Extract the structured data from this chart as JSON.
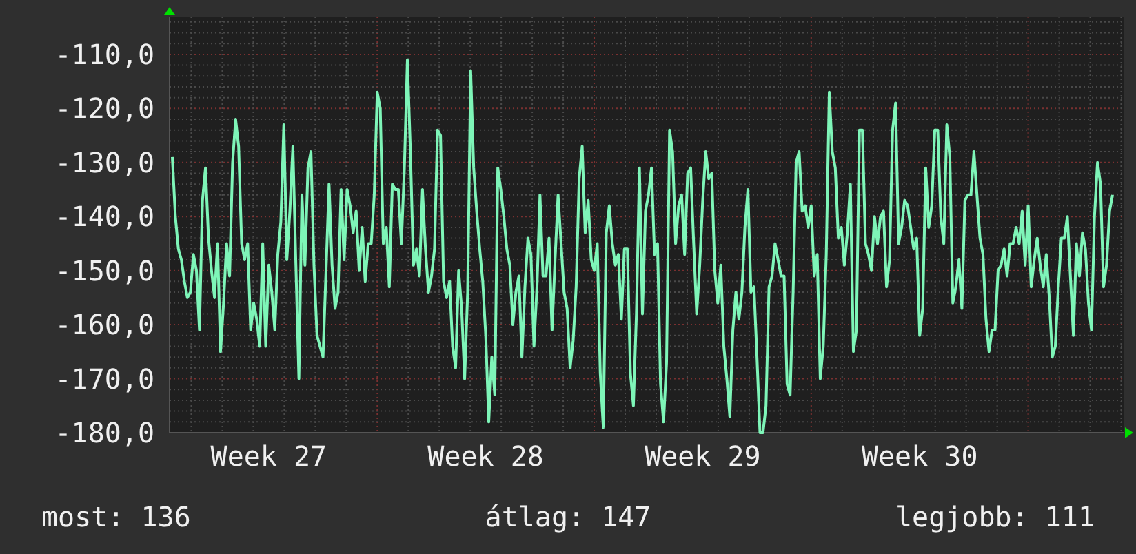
{
  "chart_data": {
    "type": "line",
    "ylim": [
      -180,
      -103
    ],
    "categories": [
      null,
      null,
      null,
      null,
      null,
      null,
      null,
      null,
      null,
      null,
      null,
      null,
      null,
      null,
      null,
      null,
      null,
      null,
      null,
      null,
      null,
      null,
      null,
      null,
      null,
      null,
      null,
      null,
      null,
      null,
      null,
      null,
      "Week 27",
      null,
      null,
      null,
      null,
      null,
      null,
      null,
      null,
      null,
      null,
      null,
      null,
      null,
      null,
      null,
      null,
      null,
      null,
      null,
      null,
      null,
      null,
      null,
      null,
      null,
      null,
      null,
      null,
      null,
      null,
      null,
      null,
      null,
      null,
      null,
      null,
      null,
      null,
      null,
      null,
      null,
      null,
      null,
      null,
      null,
      null,
      null,
      null,
      null,
      null,
      null,
      null,
      null,
      null,
      null,
      null,
      null,
      null,
      null,
      null,
      null,
      null,
      null,
      null,
      null,
      null,
      null,
      null,
      null,
      null,
      null,
      "Week 28",
      null,
      null,
      null,
      null,
      null,
      null,
      null,
      null,
      null,
      null,
      null,
      null,
      null,
      null,
      null,
      null,
      null,
      null,
      null,
      null,
      null,
      null,
      null,
      null,
      null,
      null,
      null,
      null,
      null,
      null,
      null,
      null,
      null,
      null,
      null,
      null,
      null,
      null,
      null,
      null,
      null,
      null,
      null,
      null,
      null,
      null,
      null,
      null,
      null,
      null,
      null,
      null,
      null,
      null,
      null,
      null,
      null,
      null,
      null,
      null,
      null,
      null,
      null,
      null,
      null,
      null,
      null,
      null,
      null,
      null,
      null,
      "Week 29",
      null,
      null,
      null,
      null,
      null,
      null,
      null,
      null,
      null,
      null,
      null,
      null,
      null,
      null,
      null,
      null,
      null,
      null,
      null,
      null,
      null,
      null,
      null,
      null,
      null,
      null,
      null,
      null,
      null,
      null,
      null,
      null,
      null,
      null,
      null,
      null,
      null,
      null,
      null,
      null,
      null,
      null,
      null,
      null,
      null,
      null,
      null,
      null,
      null,
      null,
      null,
      null,
      null,
      null,
      null,
      null,
      null,
      null,
      null,
      null,
      null,
      null,
      null,
      null,
      null,
      null,
      null,
      null,
      null,
      null,
      null,
      "Week 30",
      null,
      null,
      null,
      null,
      null,
      null,
      null,
      null,
      null,
      null,
      null,
      null,
      null,
      null,
      null,
      null,
      null,
      null,
      null,
      null,
      null,
      null,
      null,
      null,
      null,
      null,
      null,
      null,
      null,
      null,
      null,
      null,
      null,
      null,
      null,
      null,
      null,
      null,
      null,
      null,
      null,
      null,
      null,
      null,
      null,
      null,
      null,
      null,
      null,
      null,
      null,
      null,
      null,
      null,
      null,
      null,
      null,
      null,
      null,
      null,
      null,
      null,
      null,
      null
    ],
    "yticks": [
      {
        "value": -180,
        "label": "-180,0"
      },
      {
        "value": -170,
        "label": "-170,0"
      },
      {
        "value": -160,
        "label": "-160,0"
      },
      {
        "value": -150,
        "label": "-150,0"
      },
      {
        "value": -140,
        "label": "-140,0"
      },
      {
        "value": -130,
        "label": "-130,0"
      },
      {
        "value": -120,
        "label": "-120,0"
      },
      {
        "value": -110,
        "label": "-110,0"
      }
    ],
    "grid": true,
    "marker": "none",
    "line_style": "solid",
    "annotations": [
      "most: 136",
      "átlag: 147",
      "legjobb: 111"
    ],
    "series": [
      {
        "color": "#7ef5b8",
        "values": [
          -129,
          -140,
          -146,
          -148,
          -152,
          -155,
          -154,
          -147,
          -150,
          -161,
          -137,
          -131,
          -144,
          -150,
          -155,
          -145,
          -165,
          -156,
          -145,
          -151,
          -130,
          -122,
          -127,
          -145,
          -148,
          -145,
          -161,
          -156,
          -159,
          -164,
          -145,
          -164,
          -149,
          -154,
          -161,
          -147,
          -141,
          -123,
          -148,
          -139,
          -127,
          -149,
          -170,
          -136,
          -149,
          -131,
          -128,
          -149,
          -162,
          -164,
          -166,
          -150,
          -134,
          -149,
          -157,
          -154,
          -135,
          -148,
          -135,
          -138,
          -143,
          -139,
          -150,
          -142,
          -152,
          -145,
          -145,
          -136,
          -117,
          -120,
          -145,
          -142,
          -153,
          -134,
          -135,
          -135,
          -145,
          -131,
          -111,
          -128,
          -149,
          -146,
          -151,
          -135,
          -146,
          -154,
          -151,
          -146,
          -124,
          -125,
          -152,
          -155,
          -152,
          -164,
          -168,
          -150,
          -157,
          -170,
          -154,
          -113,
          -131,
          -139,
          -146,
          -152,
          -162,
          -178,
          -166,
          -173,
          -131,
          -135,
          -140,
          -146,
          -149,
          -160,
          -154,
          -151,
          -166,
          -153,
          -144,
          -147,
          -164,
          -153,
          -136,
          -151,
          -151,
          -144,
          -161,
          -148,
          -136,
          -145,
          -154,
          -157,
          -168,
          -163,
          -153,
          -133,
          -127,
          -143,
          -137,
          -148,
          -150,
          -145,
          -169,
          -179,
          -143,
          -138,
          -145,
          -149,
          -147,
          -159,
          -146,
          -146,
          -169,
          -175,
          -158,
          -131,
          -158,
          -139,
          -136,
          -131,
          -147,
          -145,
          -171,
          -178,
          -167,
          -124,
          -128,
          -145,
          -138,
          -136,
          -147,
          -132,
          -131,
          -145,
          -158,
          -149,
          -137,
          -128,
          -133,
          -132,
          -150,
          -156,
          -149,
          -164,
          -170,
          -177,
          -161,
          -154,
          -159,
          -154,
          -142,
          -135,
          -154,
          -153,
          -166,
          -180,
          -180,
          -175,
          -153,
          -151,
          -145,
          -148,
          -151,
          -151,
          -171,
          -173,
          -154,
          -130,
          -128,
          -139,
          -138,
          -142,
          -138,
          -151,
          -147,
          -170,
          -164,
          -147,
          -117,
          -128,
          -131,
          -144,
          -142,
          -149,
          -143,
          -134,
          -165,
          -161,
          -124,
          -124,
          -145,
          -147,
          -150,
          -140,
          -145,
          -140,
          -139,
          -153,
          -148,
          -124,
          -119,
          -145,
          -142,
          -137,
          -138,
          -142,
          -146,
          -144,
          -162,
          -157,
          -131,
          -142,
          -138,
          -124,
          -124,
          -140,
          -145,
          -123,
          -129,
          -156,
          -153,
          -148,
          -157,
          -137,
          -136,
          -136,
          -128,
          -136,
          -144,
          -147,
          -159,
          -165,
          -161,
          -161,
          -150,
          -149,
          -146,
          -151,
          -145,
          -145,
          -142,
          -145,
          -139,
          -149,
          -138,
          -153,
          -148,
          -144,
          -149,
          -153,
          -147,
          -155,
          -166,
          -164,
          -153,
          -144,
          -144,
          -140,
          -151,
          -162,
          -145,
          -151,
          -143,
          -146,
          -156,
          -161,
          -140,
          -130,
          -134,
          -153,
          -149,
          -139,
          -136
        ]
      }
    ]
  }
}
